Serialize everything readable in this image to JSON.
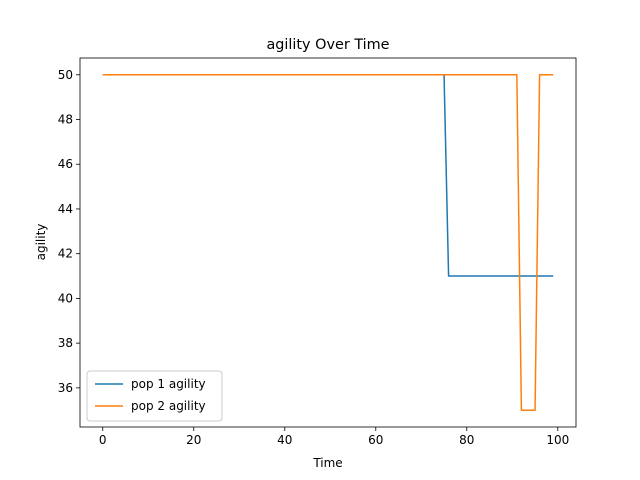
{
  "chart_data": {
    "type": "line",
    "title": "agility Over Time",
    "xlabel": "Time",
    "ylabel": "agility",
    "xlim": [
      -5,
      104
    ],
    "ylim": [
      34.25,
      50.75
    ],
    "xticks": [
      0,
      20,
      40,
      60,
      80,
      100
    ],
    "yticks": [
      36,
      38,
      40,
      42,
      44,
      46,
      48,
      50
    ],
    "grid": false,
    "legend_position": "lower-left",
    "series": [
      {
        "name": "pop 1 agility",
        "color": "#1f77b4",
        "x": [
          0,
          75,
          76,
          99
        ],
        "y": [
          50,
          50,
          41,
          41
        ]
      },
      {
        "name": "pop 2 agility",
        "color": "#ff7f0e",
        "x": [
          0,
          91,
          92,
          95,
          96,
          99
        ],
        "y": [
          50,
          50,
          35,
          35,
          50,
          50
        ]
      }
    ]
  }
}
